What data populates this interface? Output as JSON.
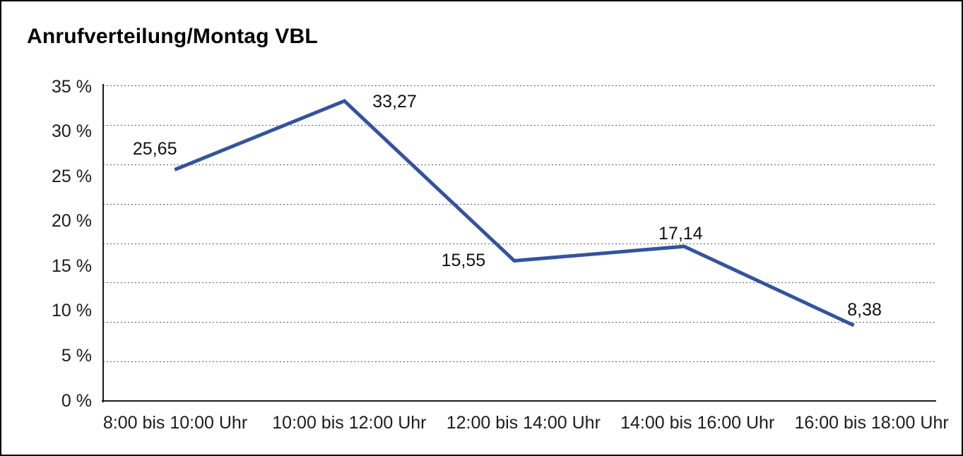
{
  "figure": {
    "title": "Anrufverteilung/Montag VBL",
    "background": "#ffffff",
    "frame_color": "#000000"
  },
  "chart_data": {
    "type": "line",
    "title": "Anrufverteilung/Montag VBL",
    "categories": [
      "8:00 bis 10:00 Uhr",
      "10:00 bis 12:00 Uhr",
      "12:00 bis 14:00 Uhr",
      "14:00 bis 16:00 Uhr",
      "16:00 bis 18:00 Uhr"
    ],
    "values": [
      25.65,
      33.27,
      15.55,
      17.14,
      8.38
    ],
    "data_labels": [
      "25,65",
      "33,27",
      "15,55",
      "17,14",
      "8,38"
    ],
    "y_tick_labels": [
      "35 %",
      "30 %",
      "25 %",
      "20 %",
      "15 %",
      "10 %",
      "5 %",
      "0 %"
    ],
    "ylim": [
      0,
      35
    ],
    "xlabel": "",
    "ylabel": "",
    "legend": "none",
    "grid": "horizontal-dotted",
    "line_color": "#32539f",
    "line_width": 5,
    "text_color": "#1c1c1c",
    "axis_color": "#1a1a1a"
  }
}
